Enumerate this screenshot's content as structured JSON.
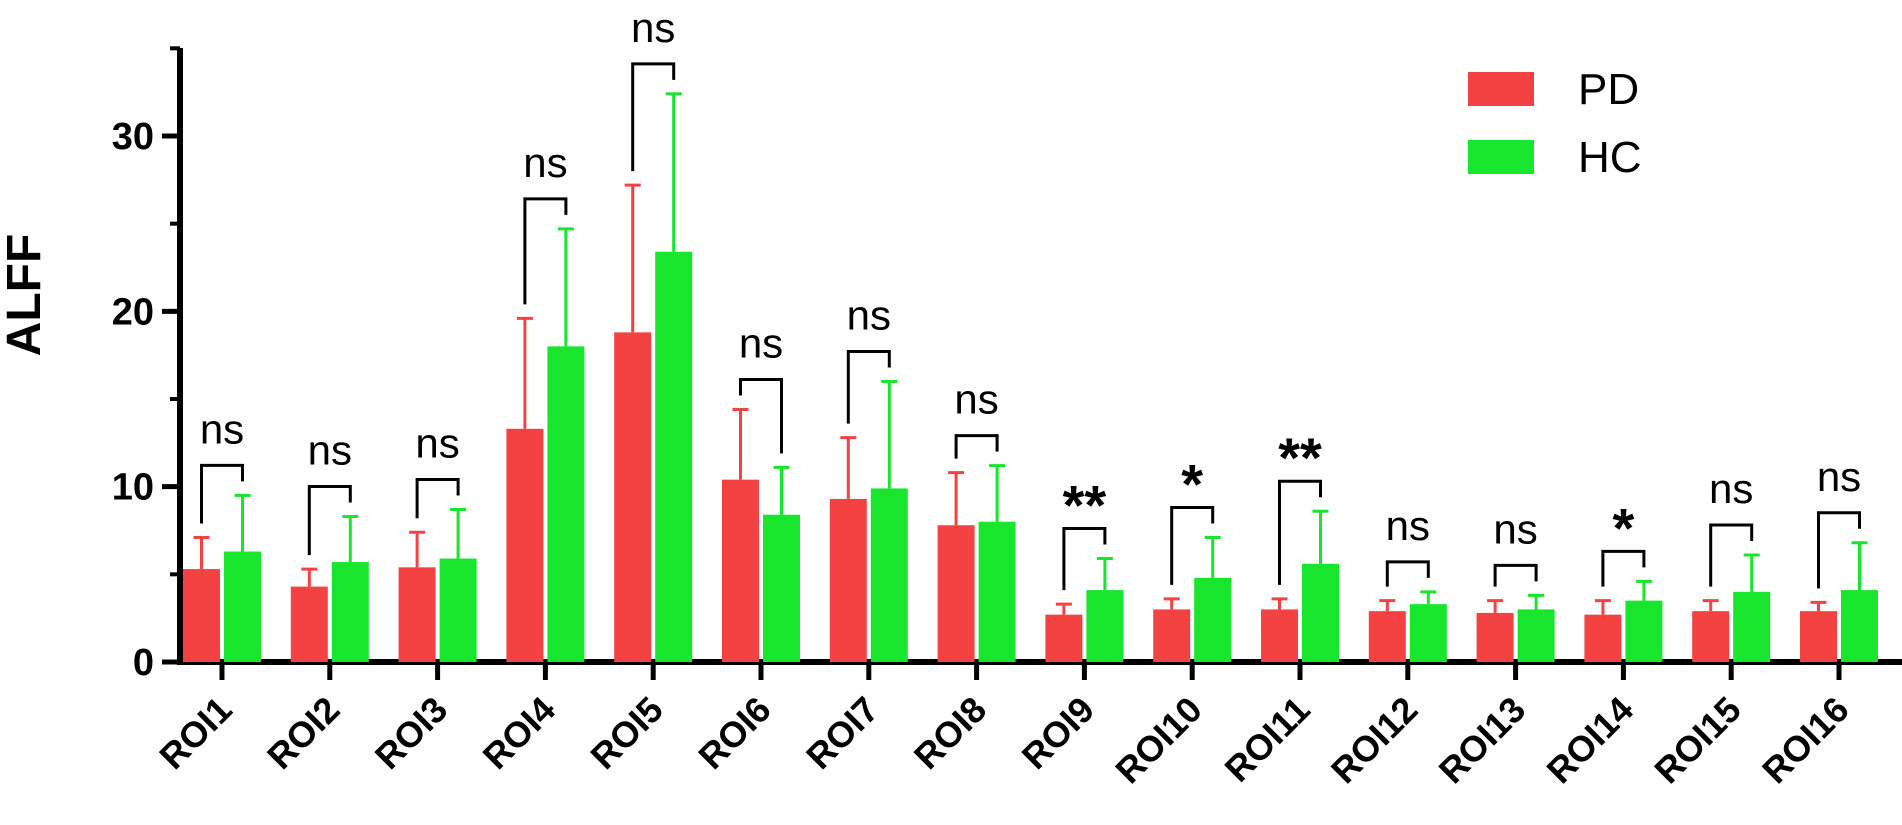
{
  "chart_data": {
    "type": "bar",
    "xlabel": "",
    "ylabel": "ALFF",
    "ylim": [
      0,
      35
    ],
    "yticks": [
      0,
      10,
      20,
      30
    ],
    "grid": false,
    "legend_position": "top-right",
    "categories": [
      "ROI1",
      "ROI2",
      "ROI3",
      "ROI4",
      "ROI5",
      "ROI6",
      "ROI7",
      "ROI8",
      "ROI9",
      "ROI10",
      "ROI11",
      "ROI12",
      "ROI13",
      "ROI14",
      "ROI15",
      "ROI16"
    ],
    "series": [
      {
        "name": "PD",
        "color": "#f44242",
        "values": [
          5.3,
          4.3,
          5.4,
          13.3,
          18.8,
          10.4,
          9.3,
          7.8,
          2.7,
          3.0,
          3.0,
          2.9,
          2.8,
          2.7,
          2.9,
          2.9
        ],
        "errors": [
          1.8,
          1.0,
          2.0,
          6.3,
          8.4,
          4.0,
          3.5,
          3.0,
          0.6,
          0.6,
          0.6,
          0.6,
          0.7,
          0.8,
          0.6,
          0.5
        ]
      },
      {
        "name": "HC",
        "color": "#17e62c",
        "values": [
          6.3,
          5.7,
          5.9,
          18.0,
          23.4,
          8.4,
          9.9,
          8.0,
          4.1,
          4.8,
          5.6,
          3.3,
          3.0,
          3.5,
          4.0,
          4.1
        ],
        "errors": [
          3.2,
          2.6,
          2.8,
          6.7,
          9.0,
          2.7,
          6.1,
          3.2,
          1.8,
          2.3,
          3.0,
          0.7,
          0.8,
          1.1,
          2.1,
          2.7
        ]
      }
    ],
    "significance": [
      "ns",
      "ns",
      "ns",
      "ns",
      "ns",
      "ns",
      "ns",
      "ns",
      "**",
      "*",
      "**",
      "ns",
      "ns",
      "*",
      "ns",
      "ns"
    ]
  }
}
